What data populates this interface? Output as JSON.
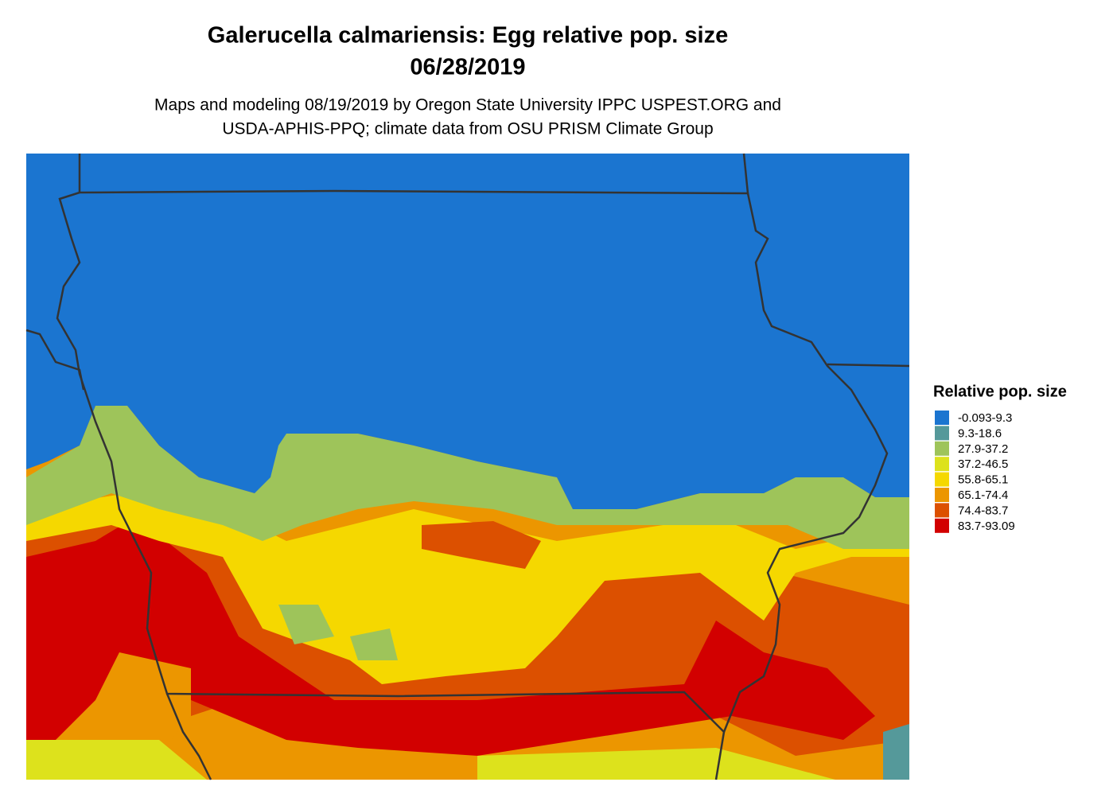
{
  "header": {
    "title": "Galerucella calmariensis: Egg relative pop. size",
    "date": "06/28/2019"
  },
  "subtitle": [
    "Maps and modeling 08/19/2019 by Oregon State University IPPC USPEST.ORG and",
    "USDA-APHIS-PPQ; climate data from OSU PRISM Climate Group"
  ],
  "legend": {
    "title": "Relative pop. size",
    "items": [
      {
        "label": "-0.093-9.3",
        "color": "#1b75d0"
      },
      {
        "label": "9.3-18.6",
        "color": "#55999a"
      },
      {
        "label": "27.9-37.2",
        "color": "#9ec45a"
      },
      {
        "label": "37.2-46.5",
        "color": "#dde21c"
      },
      {
        "label": "55.8-65.1",
        "color": "#f5d800"
      },
      {
        "label": "65.1-74.4",
        "color": "#ec9600"
      },
      {
        "label": "74.4-83.7",
        "color": "#dc5000"
      },
      {
        "label": "83.7-93.09",
        "color": "#d20000"
      }
    ]
  }
}
